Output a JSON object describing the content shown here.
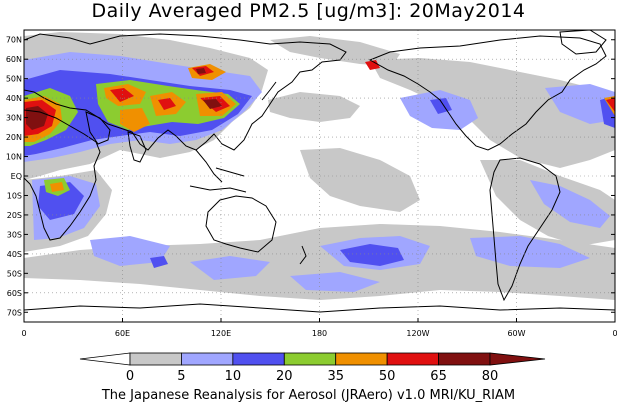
{
  "title": "Daily Averaged PM2.5 [ug/m3]: 20May2014",
  "footer": "The Japanese Reanalysis for Aerosol (JRAero) v1.0 MRI/KU_RIAM",
  "lat_labels": [
    "70N",
    "60N",
    "50N",
    "40N",
    "30N",
    "20N",
    "10N",
    "EQ",
    "10S",
    "20S",
    "30S",
    "40S",
    "50S",
    "60S",
    "70S"
  ],
  "lon_labels": [
    "0",
    "60E",
    "120E",
    "180",
    "120W",
    "60W",
    "0"
  ],
  "colorbar": {
    "labels": [
      "0",
      "5",
      "10",
      "20",
      "35",
      "50",
      "65",
      "80"
    ],
    "colors": [
      "#ffffff",
      "#c8c8c8",
      "#a0a6ff",
      "#5050f0",
      "#8ccc30",
      "#f09000",
      "#e01010",
      "#801010"
    ]
  }
}
